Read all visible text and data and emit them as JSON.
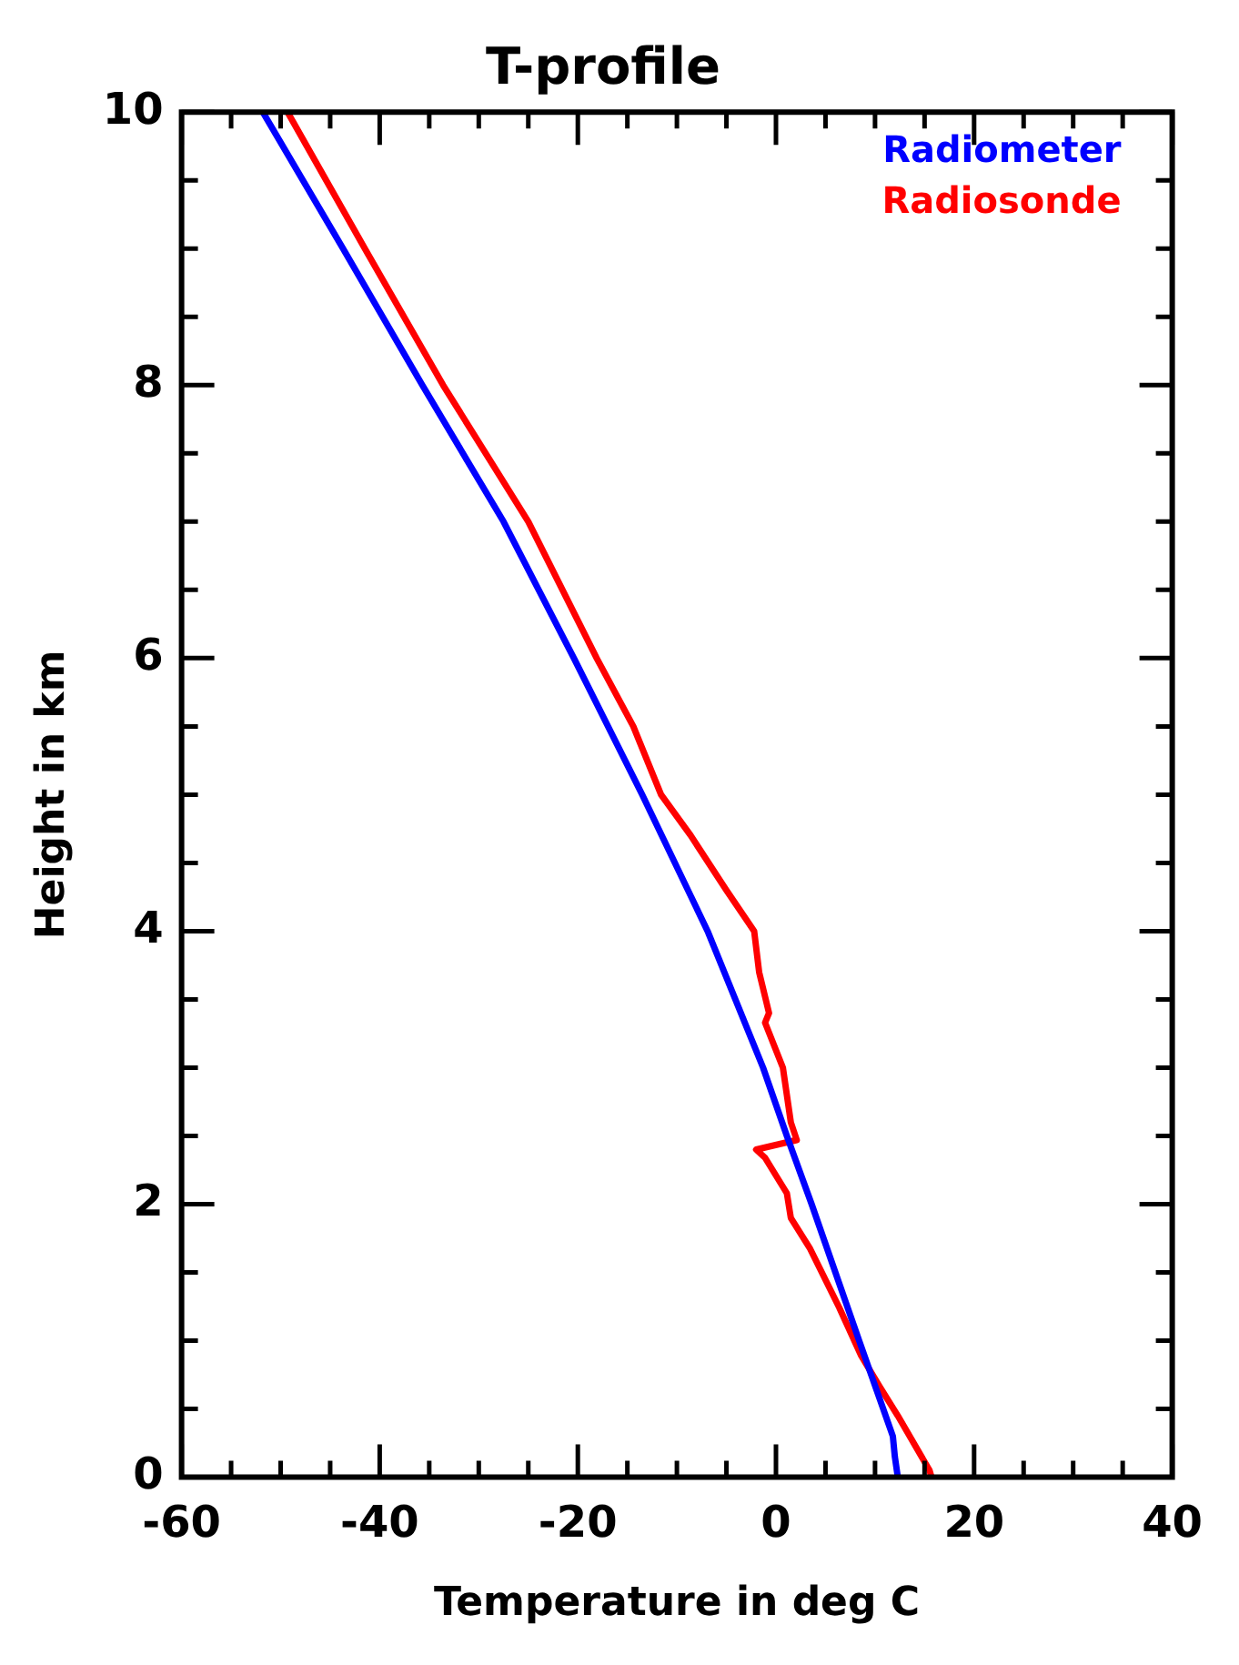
{
  "chart_data": {
    "type": "line",
    "title": "T-profile",
    "xlabel": "Temperature in deg C",
    "ylabel": "Height in km",
    "xlim": [
      -60,
      40
    ],
    "ylim": [
      0,
      10
    ],
    "xticks": [
      -60,
      {
        "value": -55,
        "label": null
      },
      {
        "value": -50,
        "label": null
      },
      {
        "value": -45,
        "label": null
      },
      -40,
      {
        "value": -35,
        "label": null
      },
      {
        "value": -30,
        "label": null
      },
      {
        "value": -25,
        "label": null
      },
      -20,
      {
        "value": -15,
        "label": null
      },
      {
        "value": -10,
        "label": null
      },
      {
        "value": -5,
        "label": null
      },
      0,
      {
        "value": 5,
        "label": null
      },
      {
        "value": 10,
        "label": null
      },
      {
        "value": 15,
        "label": null
      },
      20,
      {
        "value": 25,
        "label": null
      },
      {
        "value": 30,
        "label": null
      },
      {
        "value": 35,
        "label": null
      },
      40
    ],
    "yticks": [
      0,
      {
        "value": 0.5,
        "label": null
      },
      {
        "value": 1,
        "label": null
      },
      {
        "value": 1.5,
        "label": null
      },
      2,
      {
        "value": 2.5,
        "label": null
      },
      {
        "value": 3,
        "label": null
      },
      {
        "value": 3.5,
        "label": null
      },
      4,
      {
        "value": 4.5,
        "label": null
      },
      {
        "value": 5,
        "label": null
      },
      {
        "value": 5.5,
        "label": null
      },
      6,
      {
        "value": 6.5,
        "label": null
      },
      {
        "value": 7,
        "label": null
      },
      {
        "value": 7.5,
        "label": null
      },
      8,
      {
        "value": 8.5,
        "label": null
      },
      {
        "value": 9,
        "label": null
      },
      {
        "value": 9.5,
        "label": null
      },
      10
    ],
    "grid": false,
    "legend": "top right",
    "marker": "none",
    "line_style": "solid",
    "series": [
      {
        "name": "Radiometer",
        "color": "#0000ff",
        "x": [
          12.3,
          12.0,
          11.8,
          8.4,
          3.6,
          1.1,
          -1.3,
          -6.9,
          -13.5,
          -20.4,
          -27.5,
          -35.7,
          -43.7,
          -51.8
        ],
        "values": [
          0,
          0.15,
          0.3,
          1,
          2,
          2.5,
          3,
          4,
          5,
          6,
          7,
          8,
          9,
          10
        ]
      },
      {
        "name": "Radiosonde",
        "color": "#ff0000",
        "x": [
          15.7,
          15.5,
          12.3,
          10.5,
          8.6,
          6.4,
          3.4,
          1.5,
          1.1,
          -1.1,
          -2.0,
          2.1,
          1.5,
          0.7,
          -1.1,
          -0.7,
          -1.7,
          -2.2,
          -5.0,
          -8.6,
          -11.6,
          -14.4,
          -18.1,
          -25.0,
          -33.6,
          -41.5,
          -49.3
        ],
        "values": [
          0,
          0.05,
          0.45,
          0.66,
          0.89,
          1.24,
          1.68,
          1.9,
          2.08,
          2.34,
          2.4,
          2.47,
          2.6,
          3.0,
          3.33,
          3.4,
          3.7,
          4.0,
          4.3,
          4.7,
          5.0,
          5.5,
          6,
          7,
          8,
          9,
          10
        ]
      }
    ]
  }
}
